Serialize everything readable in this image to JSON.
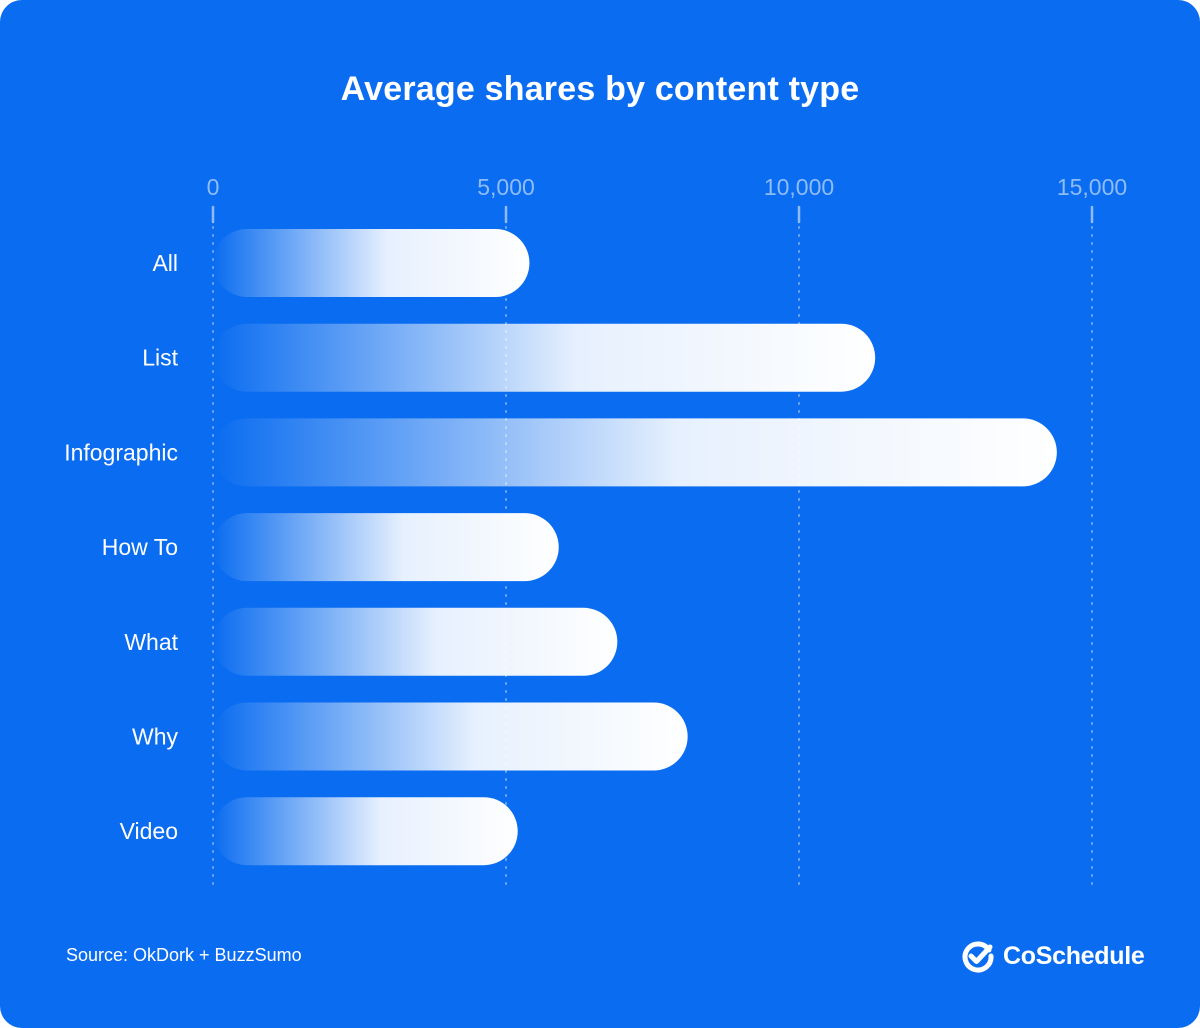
{
  "chart_data": {
    "type": "bar",
    "orientation": "horizontal",
    "title": "Average shares by content type",
    "categories": [
      "All",
      "List",
      "Infographic",
      "How To",
      "What",
      "Why",
      "Video"
    ],
    "values": [
      5400,
      11300,
      14400,
      5900,
      6900,
      8100,
      5200
    ],
    "xlim": [
      0,
      15000
    ],
    "ticks": [
      0,
      5000,
      10000,
      15000
    ],
    "tick_labels": [
      "0",
      "5,000",
      "10,000",
      "15,000"
    ],
    "grid": true,
    "legend": "none"
  },
  "source": "Source: OkDork + BuzzSumo",
  "brand": {
    "name": "CoSchedule",
    "icon": "check-circle-icon"
  },
  "colors": {
    "background": "#0a6cf0",
    "bar_end": "#ffffff",
    "tick_text": "#8fbcf7",
    "grid": "#6fa8f6"
  }
}
